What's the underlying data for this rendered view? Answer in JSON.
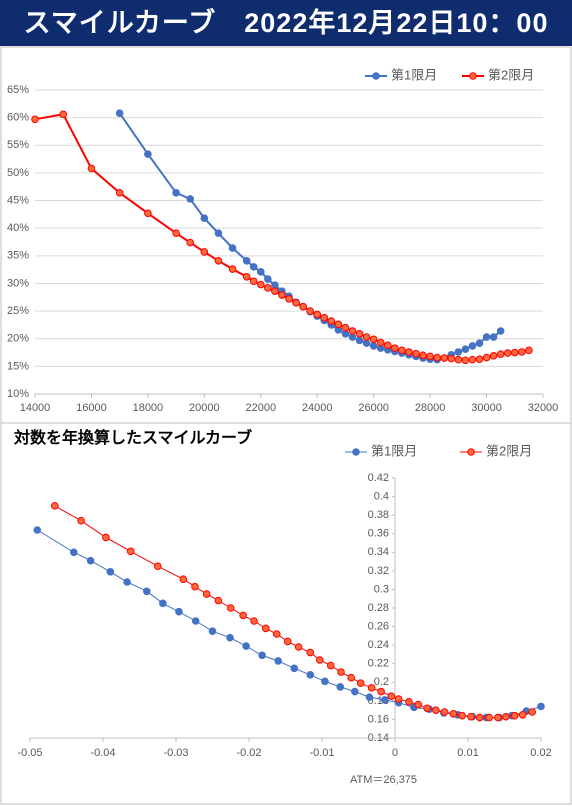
{
  "header": {
    "title": "スマイルカーブ　2022年12月22日10：00"
  },
  "chart_data": [
    {
      "type": "line",
      "grid": true,
      "legend": "top-right",
      "xlim": [
        14000,
        32000
      ],
      "xticks": [
        14000,
        16000,
        18000,
        20000,
        22000,
        24000,
        26000,
        28000,
        30000,
        32000
      ],
      "ylim": [
        10,
        65
      ],
      "yticks": [
        {
          "value": 10,
          "label": "10%"
        },
        {
          "value": 15,
          "label": "15%"
        },
        {
          "value": 20,
          "label": "20%"
        },
        {
          "value": 25,
          "label": "25%"
        },
        {
          "value": 30,
          "label": "30%"
        },
        {
          "value": 35,
          "label": "35%"
        },
        {
          "value": 40,
          "label": "40%"
        },
        {
          "value": 45,
          "label": "45%"
        },
        {
          "value": 50,
          "label": "50%"
        },
        {
          "value": 55,
          "label": "55%"
        },
        {
          "value": 60,
          "label": "60%"
        },
        {
          "value": 65,
          "label": "65%"
        }
      ],
      "series": [
        {
          "name": "第1限月",
          "color": "#4472c4",
          "marker_color": "#4472c4",
          "x": [
            17000,
            18000,
            19000,
            19500,
            20000,
            20500,
            21000,
            21500,
            21750,
            22000,
            22250,
            22500,
            22750,
            23000,
            23250,
            23500,
            23750,
            24000,
            24250,
            24500,
            24750,
            25000,
            25250,
            25500,
            25750,
            26000,
            26250,
            26500,
            26750,
            27000,
            27250,
            27500,
            27750,
            28000,
            28250,
            28750,
            29000,
            29250,
            29500,
            29750,
            30000,
            30250,
            30500
          ],
          "values": [
            60.8,
            53.4,
            46.4,
            45.3,
            41.8,
            39.1,
            36.4,
            34.1,
            33.0,
            32.1,
            30.8,
            29.7,
            28.6,
            27.7,
            26.6,
            25.8,
            24.9,
            24.1,
            23.3,
            22.5,
            21.6,
            20.9,
            20.3,
            19.7,
            19.2,
            18.7,
            18.3,
            18.0,
            17.7,
            17.4,
            17.1,
            16.8,
            16.5,
            16.3,
            16.2,
            17.1,
            17.6,
            18.1,
            18.7,
            19.2,
            20.3,
            20.3,
            21.4
          ]
        },
        {
          "name": "第2限月",
          "color": "#ff0000",
          "marker_color": "#ff6a3d",
          "x": [
            14000,
            15000,
            16000,
            17000,
            18000,
            19000,
            19500,
            20000,
            20500,
            21000,
            21500,
            21750,
            22000,
            22250,
            22500,
            22750,
            23000,
            23250,
            23500,
            23750,
            24000,
            24250,
            24500,
            24750,
            25000,
            25250,
            25500,
            25750,
            26000,
            26250,
            26500,
            26750,
            27000,
            27250,
            27500,
            27750,
            28000,
            28250,
            28500,
            28750,
            29000,
            29250,
            29500,
            29750,
            30000,
            30250,
            30500,
            30750,
            31000,
            31250,
            31500
          ],
          "values": [
            59.7,
            60.6,
            50.8,
            46.4,
            42.7,
            39.1,
            37.4,
            35.7,
            34.1,
            32.6,
            31.2,
            30.4,
            29.8,
            29.2,
            28.6,
            27.9,
            27.2,
            26.5,
            25.8,
            25.0,
            24.4,
            23.8,
            23.2,
            22.6,
            22.0,
            21.4,
            20.9,
            20.3,
            19.9,
            19.3,
            18.8,
            18.3,
            17.9,
            17.6,
            17.3,
            17.0,
            16.8,
            16.6,
            16.5,
            16.4,
            16.2,
            16.1,
            16.2,
            16.3,
            16.6,
            16.9,
            17.2,
            17.4,
            17.5,
            17.6,
            17.9
          ]
        }
      ]
    },
    {
      "type": "line",
      "title": "対数を年換算したスマイルカーブ",
      "grid": false,
      "legend": "top-right",
      "y_axis_crosses": 0,
      "annotation": "ATM＝26,375",
      "xlim": [
        -0.05,
        0.02
      ],
      "xticks": [
        -0.05,
        -0.04,
        -0.03,
        -0.02,
        -0.01,
        0,
        0.01,
        0.02
      ],
      "ylim": [
        0.14,
        0.42
      ],
      "yticks": [
        0.14,
        0.16,
        0.18,
        0.2,
        0.22,
        0.24,
        0.26,
        0.28,
        0.3,
        0.32,
        0.34,
        0.36,
        0.38,
        0.4,
        0.42
      ],
      "series": [
        {
          "name": "第1限月",
          "color": "#4472c4",
          "marker_color": "#4472c4",
          "x": [
            -0.049,
            -0.044,
            -0.0417,
            -0.039,
            -0.0367,
            -0.034,
            -0.0318,
            -0.0296,
            -0.0273,
            -0.025,
            -0.0226,
            -0.0204,
            -0.0182,
            -0.016,
            -0.0138,
            -0.0116,
            -0.0096,
            -0.0075,
            -0.0055,
            -0.0035,
            -0.0014,
            0.0005,
            0.0026,
            0.0047,
            0.0067,
            0.0086,
            0.0106,
            0.0125,
            0.0143,
            0.016,
            0.018,
            0.02
          ],
          "values": [
            0.364,
            0.34,
            0.331,
            0.319,
            0.308,
            0.298,
            0.285,
            0.276,
            0.266,
            0.255,
            0.248,
            0.239,
            0.229,
            0.223,
            0.215,
            0.208,
            0.201,
            0.195,
            0.19,
            0.184,
            0.181,
            0.178,
            0.173,
            0.171,
            0.167,
            0.165,
            0.163,
            0.162,
            0.162,
            0.164,
            0.169,
            0.174
          ]
        },
        {
          "name": "第2限月",
          "color": "#ff0000",
          "marker_color": "#ff6a3d",
          "x": [
            -0.0466,
            -0.043,
            -0.0396,
            -0.0362,
            -0.0325,
            -0.029,
            -0.0274,
            -0.0258,
            -0.0242,
            -0.0225,
            -0.0208,
            -0.0193,
            -0.0177,
            -0.0162,
            -0.0147,
            -0.0132,
            -0.0116,
            -0.0103,
            -0.0088,
            -0.0074,
            -0.006,
            -0.0047,
            -0.0032,
            -0.0019,
            -0.0005,
            0.0005,
            0.0019,
            0.0032,
            0.0044,
            0.0056,
            0.0068,
            0.008,
            0.0092,
            0.0104,
            0.0116,
            0.0129,
            0.0141,
            0.0152,
            0.0164,
            0.0175,
            0.0188
          ],
          "values": [
            0.39,
            0.374,
            0.356,
            0.341,
            0.325,
            0.311,
            0.303,
            0.295,
            0.288,
            0.28,
            0.272,
            0.266,
            0.258,
            0.252,
            0.244,
            0.238,
            0.232,
            0.224,
            0.218,
            0.211,
            0.205,
            0.199,
            0.194,
            0.19,
            0.185,
            0.182,
            0.179,
            0.176,
            0.172,
            0.17,
            0.168,
            0.166,
            0.164,
            0.163,
            0.162,
            0.162,
            0.162,
            0.163,
            0.164,
            0.165,
            0.168
          ]
        }
      ]
    }
  ]
}
